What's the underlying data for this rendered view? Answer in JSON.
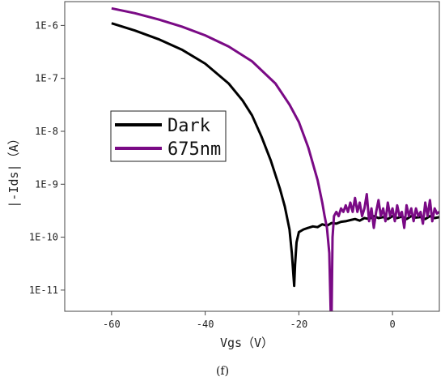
{
  "chart_data": {
    "type": "line",
    "title": "",
    "caption": "(f)",
    "xlabel": "Vgs（V）",
    "ylabel": "|-Ids|（A）",
    "xlim": [
      -70,
      10
    ],
    "ylim_log10": [
      -11.4,
      -5.55
    ],
    "y_scale": "log",
    "x_ticks": [
      -60,
      -40,
      -20,
      0
    ],
    "x_tick_labels": [
      "-60",
      "-40",
      "-20",
      "0"
    ],
    "y_ticks_log10": [
      -6,
      -7,
      -8,
      -9,
      -10,
      -11
    ],
    "y_tick_labels": [
      "1E-6",
      "1E-7",
      "1E-8",
      "1E-9",
      "1E-10",
      "1E-11"
    ],
    "grid": false,
    "legend_placement": "center-left",
    "series": [
      {
        "name": "Dark",
        "color": "#000000",
        "points": [
          [
            -60,
            1.1e-06
          ],
          [
            -55,
            8e-07
          ],
          [
            -50,
            5.5e-07
          ],
          [
            -45,
            3.5e-07
          ],
          [
            -40,
            1.9e-07
          ],
          [
            -35,
            8e-08
          ],
          [
            -32,
            3.8e-08
          ],
          [
            -30,
            2e-08
          ],
          [
            -28,
            8e-09
          ],
          [
            -26,
            2.8e-09
          ],
          [
            -24,
            8e-10
          ],
          [
            -23,
            3.8e-10
          ],
          [
            -22,
            1.4e-10
          ],
          [
            -21.5,
            5e-11
          ],
          [
            -21,
            1.2e-11
          ],
          [
            -20.8,
            3e-11
          ],
          [
            -20.5,
            8e-11
          ],
          [
            -20,
            1.25e-10
          ],
          [
            -19,
            1.4e-10
          ],
          [
            -18,
            1.5e-10
          ],
          [
            -17,
            1.6e-10
          ],
          [
            -16,
            1.55e-10
          ],
          [
            -15,
            1.75e-10
          ],
          [
            -14,
            1.65e-10
          ],
          [
            -13,
            1.85e-10
          ],
          [
            -12,
            1.8e-10
          ],
          [
            -11,
            1.95e-10
          ],
          [
            -10,
            2e-10
          ],
          [
            -9,
            2.1e-10
          ],
          [
            -8,
            2.2e-10
          ],
          [
            -7,
            2.05e-10
          ],
          [
            -6,
            2.3e-10
          ],
          [
            -5,
            2.2e-10
          ],
          [
            -4,
            2.5e-10
          ],
          [
            -3,
            2.3e-10
          ],
          [
            -2,
            2.4e-10
          ],
          [
            -1,
            2.2e-10
          ],
          [
            0,
            2.5e-10
          ],
          [
            1,
            2.3e-10
          ],
          [
            2,
            2.45e-10
          ],
          [
            3,
            2.2e-10
          ],
          [
            4,
            2.5e-10
          ],
          [
            5,
            2.35e-10
          ],
          [
            6,
            2.4e-10
          ],
          [
            7,
            2.2e-10
          ],
          [
            8,
            2.5e-10
          ],
          [
            9,
            2.3e-10
          ],
          [
            10,
            2.4e-10
          ]
        ]
      },
      {
        "name": "675nm",
        "color": "#7a0a85",
        "points": [
          [
            -60,
            2.1e-06
          ],
          [
            -55,
            1.7e-06
          ],
          [
            -50,
            1.3e-06
          ],
          [
            -45,
            9.5e-07
          ],
          [
            -40,
            6.5e-07
          ],
          [
            -35,
            4e-07
          ],
          [
            -30,
            2.1e-07
          ],
          [
            -25,
            8e-08
          ],
          [
            -22,
            3.2e-08
          ],
          [
            -20,
            1.5e-08
          ],
          [
            -18,
            5e-09
          ],
          [
            -16,
            1.2e-09
          ],
          [
            -15,
            4.5e-10
          ],
          [
            -14.5,
            2.5e-10
          ],
          [
            -14,
            1.5e-10
          ],
          [
            -13.5,
            5e-11
          ],
          [
            -13.2,
            4e-12
          ],
          [
            -13,
            4e-12
          ],
          [
            -12.8,
            1e-10
          ],
          [
            -12.5,
            2.5e-10
          ],
          [
            -12,
            3e-10
          ],
          [
            -11.5,
            2.5e-10
          ],
          [
            -11,
            3.5e-10
          ],
          [
            -10.5,
            3e-10
          ],
          [
            -10,
            4e-10
          ],
          [
            -9.5,
            3e-10
          ],
          [
            -9,
            4.5e-10
          ],
          [
            -8.5,
            3e-10
          ],
          [
            -8,
            5.5e-10
          ],
          [
            -7.5,
            3e-10
          ],
          [
            -7,
            4.5e-10
          ],
          [
            -6.5,
            2.5e-10
          ],
          [
            -6,
            3.5e-10
          ],
          [
            -5.5,
            6.5e-10
          ],
          [
            -5,
            2e-10
          ],
          [
            -4.5,
            3.5e-10
          ],
          [
            -4,
            1.5e-10
          ],
          [
            -3.5,
            3e-10
          ],
          [
            -3,
            5e-10
          ],
          [
            -2.5,
            2.5e-10
          ],
          [
            -2,
            3.5e-10
          ],
          [
            -1.5,
            2e-10
          ],
          [
            -1,
            4.5e-10
          ],
          [
            -0.5,
            2.5e-10
          ],
          [
            0,
            3.5e-10
          ],
          [
            0.5,
            2e-10
          ],
          [
            1,
            4e-10
          ],
          [
            1.5,
            2.5e-10
          ],
          [
            2,
            3e-10
          ],
          [
            2.5,
            1.5e-10
          ],
          [
            3,
            4e-10
          ],
          [
            3.5,
            2.5e-10
          ],
          [
            4,
            3.5e-10
          ],
          [
            4.5,
            2e-10
          ],
          [
            5,
            3.5e-10
          ],
          [
            5.5,
            2.5e-10
          ],
          [
            6,
            3e-10
          ],
          [
            6.5,
            1.8e-10
          ],
          [
            7,
            4.5e-10
          ],
          [
            7.5,
            2.5e-10
          ],
          [
            8,
            5e-10
          ],
          [
            8.5,
            2e-10
          ],
          [
            9,
            3.5e-10
          ],
          [
            9.5,
            2.8e-10
          ],
          [
            10,
            3e-10
          ]
        ]
      }
    ]
  }
}
